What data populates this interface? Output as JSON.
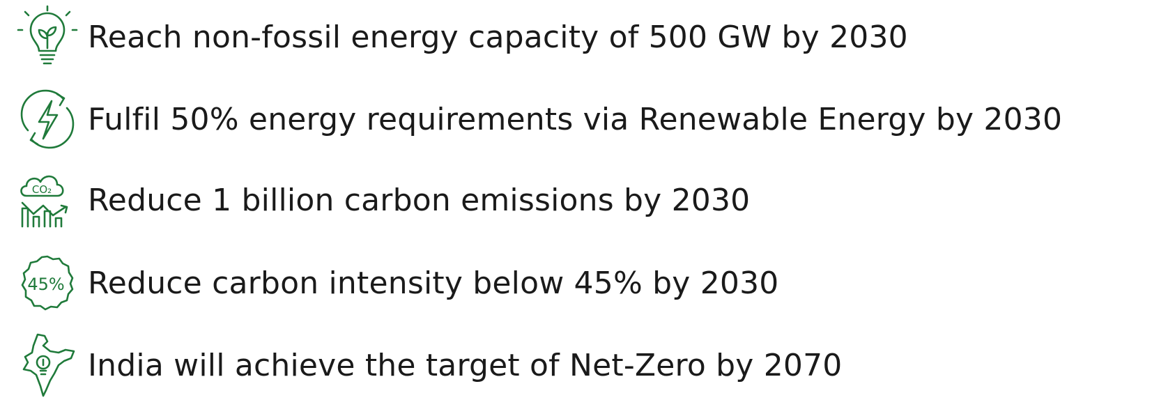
{
  "items": [
    {
      "text": "Reach non-fossil energy capacity of 500 GW by 2030"
    },
    {
      "text": "Fulfil 50% energy requirements via Renewable Energy by 2030"
    },
    {
      "text": "Reduce 1 billion carbon emissions by 2030",
      "icon_text": "CO₂"
    },
    {
      "text": "Reduce carbon intensity below 45% by 2030",
      "icon_text": "45%"
    },
    {
      "text": "India will achieve the target of Net-Zero by 2070"
    }
  ]
}
